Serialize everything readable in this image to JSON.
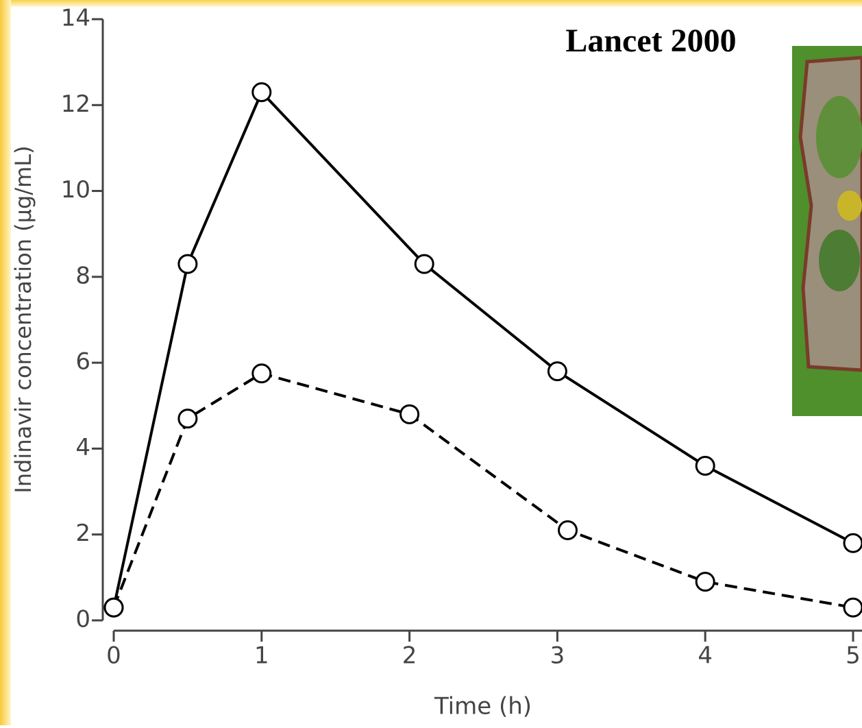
{
  "chart_data": {
    "type": "line",
    "title": "Lancet 2000",
    "x_label": "Time (h)",
    "y_label": "Indinavir concentration (µg/mL)",
    "xlim": [
      0,
      5
    ],
    "xticks": [
      0,
      1,
      2,
      3,
      4,
      5
    ],
    "ylim": [
      0,
      14
    ],
    "yticks": [
      0,
      2,
      4,
      6,
      8,
      10,
      12,
      14
    ],
    "series": [
      {
        "color": "#000000",
        "dash": false,
        "x": [
          0,
          0.5,
          1,
          2.1,
          3,
          4,
          5
        ],
        "values": [
          0.3,
          8.3,
          12.3,
          8.3,
          5.8,
          3.6,
          1.8
        ]
      },
      {
        "color": "#000000",
        "dash": true,
        "x": [
          0,
          0.5,
          1,
          2,
          3.07,
          4,
          5
        ],
        "values": [
          0.3,
          4.7,
          5.75,
          4.8,
          2.1,
          0.9,
          0.3
        ]
      }
    ]
  }
}
